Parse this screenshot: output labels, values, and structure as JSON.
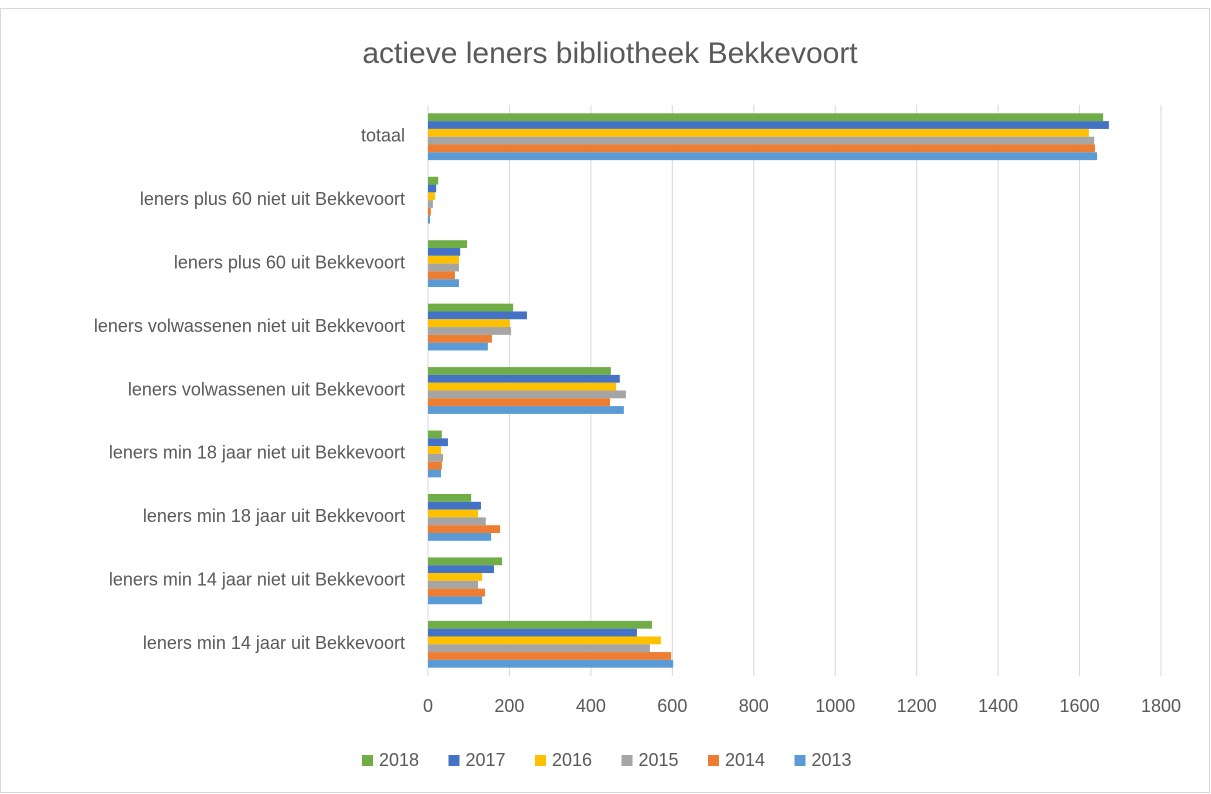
{
  "chart_data": {
    "type": "bar",
    "orientation": "horizontal",
    "title": "actieve leners bibliotheek Bekkevoort",
    "categories": [
      "totaal",
      "leners plus 60 niet uit Bekkevoort",
      "leners plus 60 uit Bekkevoort",
      "leners volwassenen niet uit Bekkevoort",
      "leners volwassenen uit Bekkevoort",
      "leners min 18 jaar niet uit Bekkevoort",
      "leners min 18 jaar uit Bekkevoort",
      "leners min 14 jaar niet uit Bekkevoort",
      "leners min 14 jaar uit Bekkevoort"
    ],
    "series": [
      {
        "name": "2018",
        "color": "#70ad47",
        "values": [
          1658,
          25,
          96,
          209,
          449,
          34,
          106,
          182,
          550
        ]
      },
      {
        "name": "2017",
        "color": "#4472c4",
        "values": [
          1672,
          20,
          79,
          243,
          471,
          49,
          130,
          162,
          513
        ]
      },
      {
        "name": "2016",
        "color": "#ffc000",
        "values": [
          1623,
          17,
          76,
          201,
          462,
          32,
          123,
          133,
          572
        ]
      },
      {
        "name": "2015",
        "color": "#a5a5a5",
        "values": [
          1636,
          12,
          76,
          204,
          486,
          37,
          142,
          123,
          545
        ]
      },
      {
        "name": "2014",
        "color": "#ed7d31",
        "values": [
          1638,
          7,
          66,
          157,
          447,
          34,
          177,
          140,
          597
        ]
      },
      {
        "name": "2013",
        "color": "#5b9bd5",
        "values": [
          1643,
          5,
          76,
          147,
          481,
          32,
          155,
          133,
          602
        ]
      }
    ],
    "xlim": [
      0,
      1800
    ],
    "xticks": [
      0,
      200,
      400,
      600,
      800,
      1000,
      1200,
      1400,
      1600,
      1800
    ],
    "grid": true,
    "legend": "bottom"
  }
}
